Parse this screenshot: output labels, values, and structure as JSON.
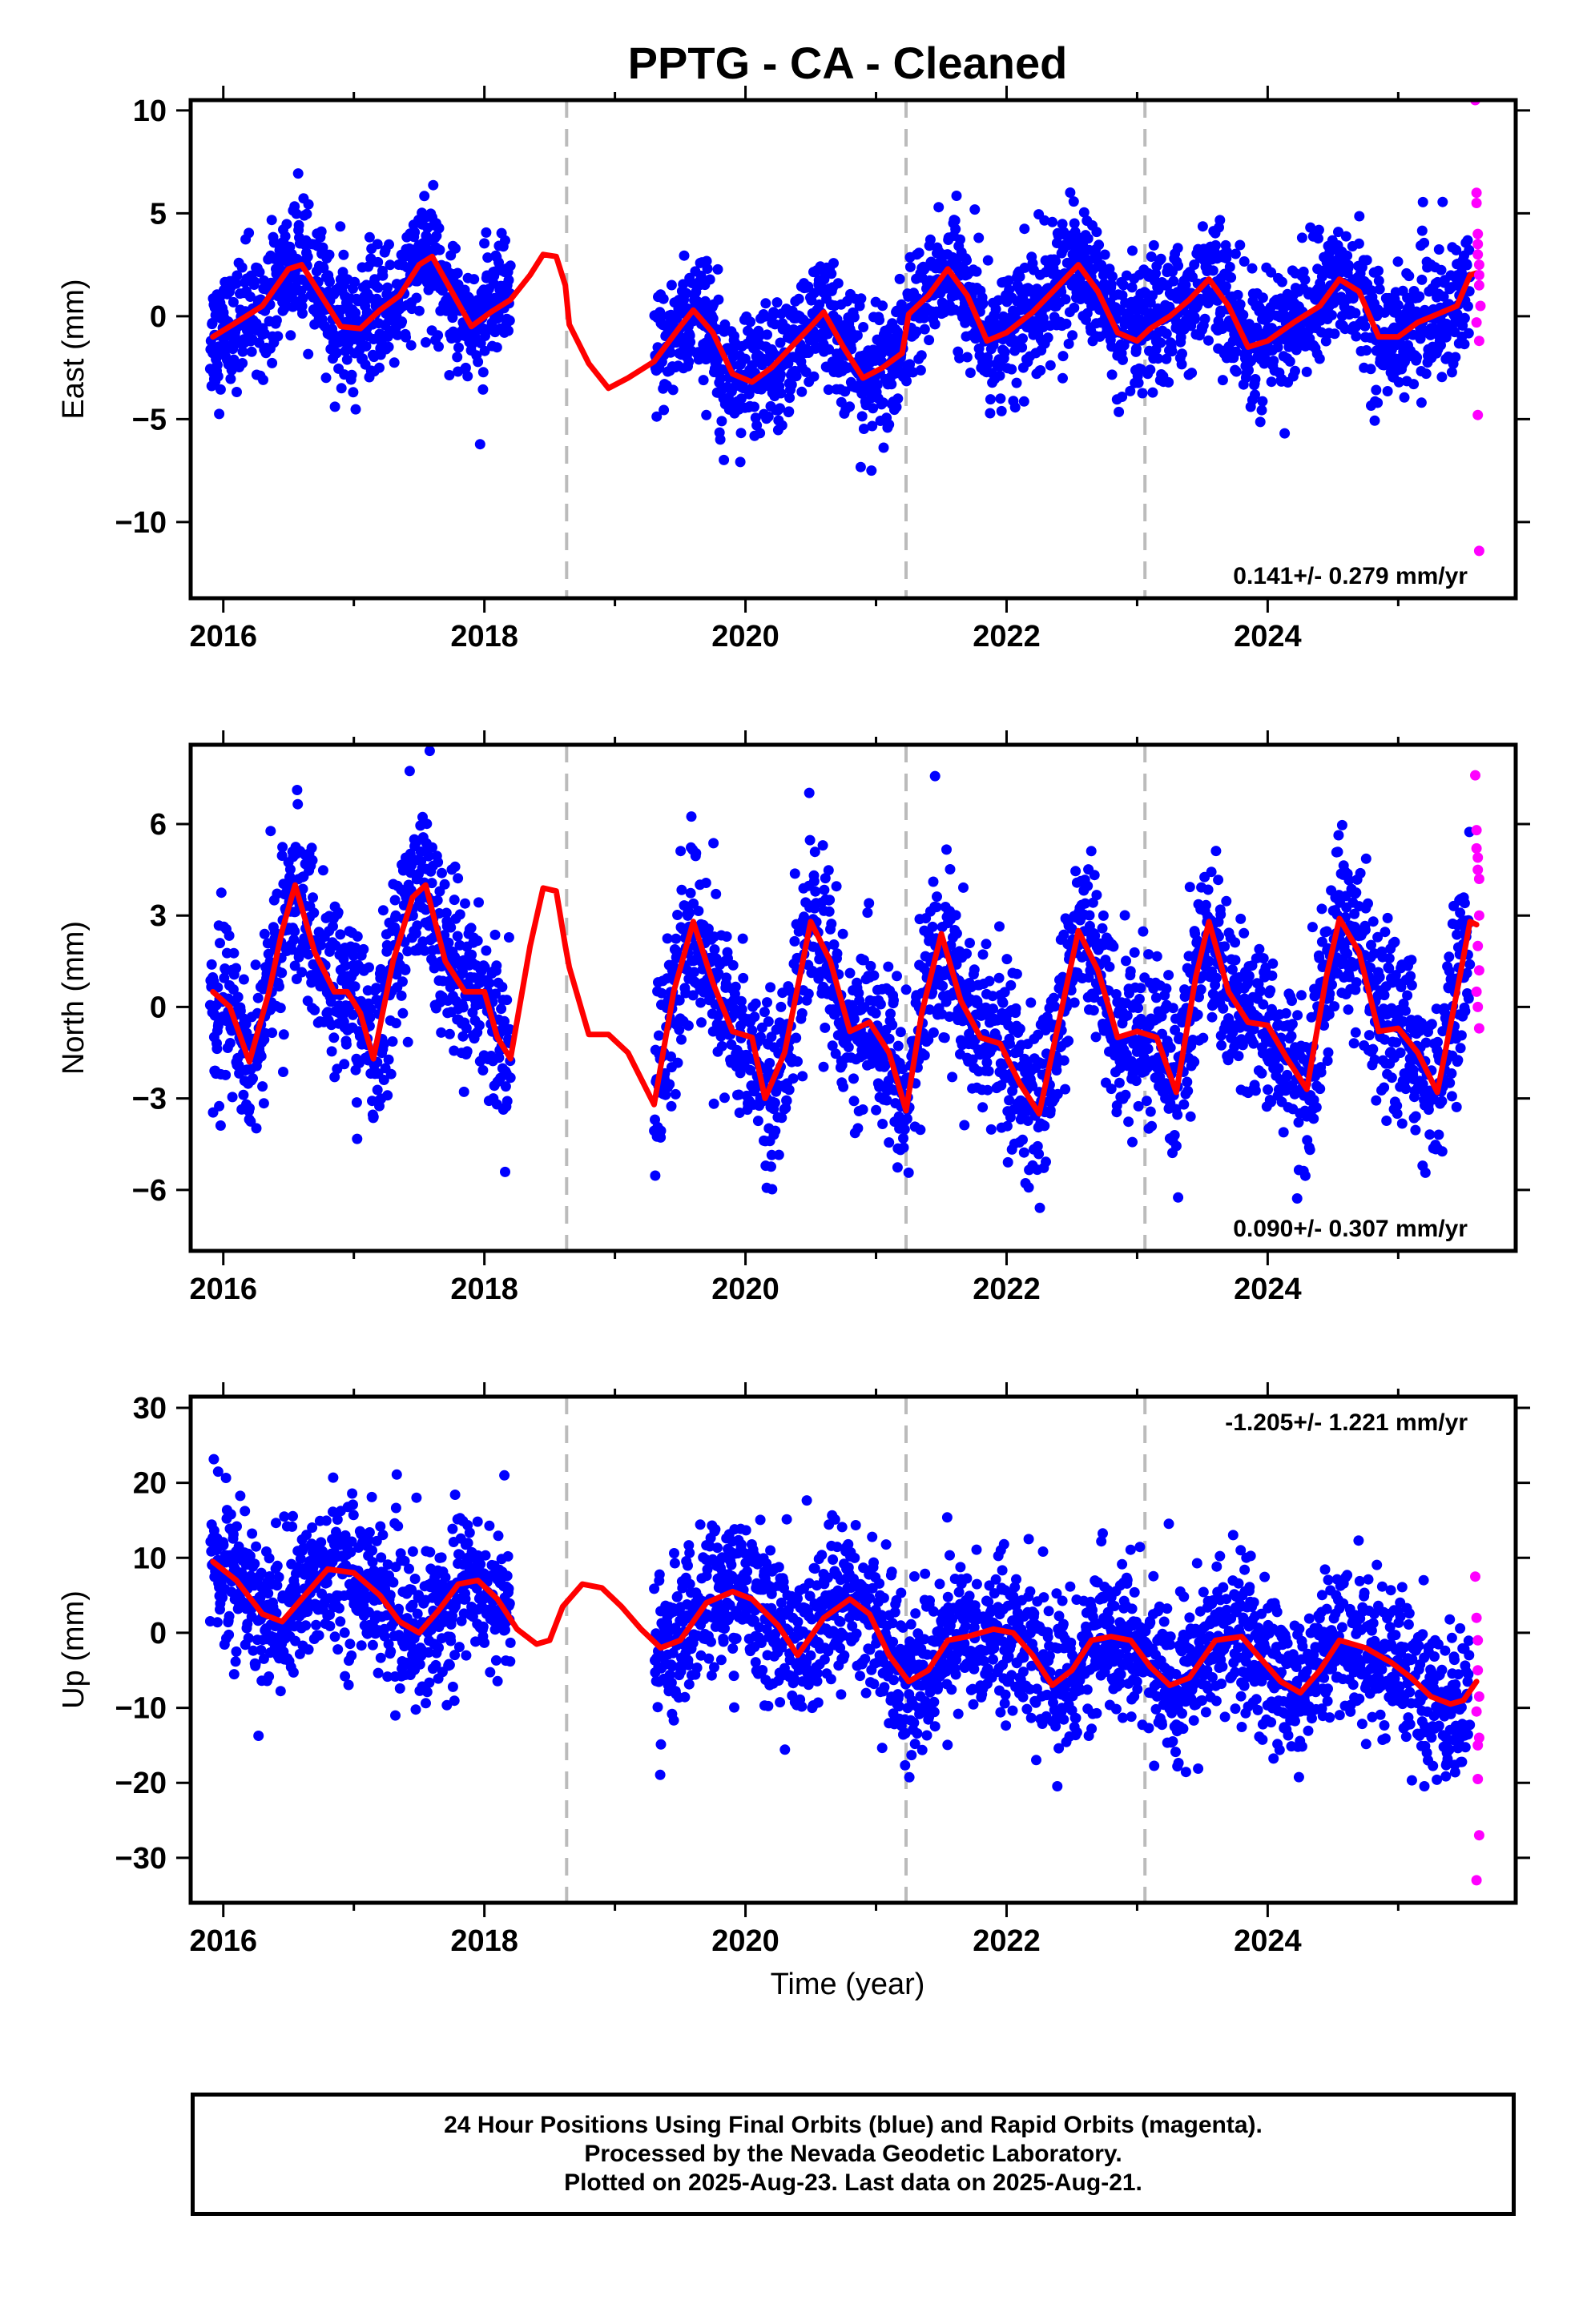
{
  "title": "PPTG  - CA - Cleaned",
  "xlabel": "Time (year)",
  "caption": {
    "line1": "24 Hour Positions Using Final Orbits (blue) and Rapid Orbits (magenta).",
    "line2": "Processed by the Nevada Geodetic Laboratory.",
    "line3": "Plotted on 2025-Aug-23. Last data on 2025-Aug-21."
  },
  "colors": {
    "final_orbits": "#0000ff",
    "rapid_orbits": "#ff00ff",
    "model_fit": "#ff0000",
    "event_lines": "#bbbbbb"
  },
  "chart_data": [
    {
      "type": "scatter",
      "component": "east",
      "ylabel": "East (mm)",
      "rate_text": "0.141+/- 0.279 mm/yr",
      "xlim": [
        2015.75,
        2025.9
      ],
      "ylim": [
        -13.7,
        10.5
      ],
      "xticks": [
        2016,
        2018,
        2020,
        2022,
        2024
      ],
      "yticks": [
        10,
        5,
        0,
        -5,
        -10
      ],
      "ytick_labels": [
        "10",
        "5",
        "0",
        "−5",
        "−10"
      ],
      "event_lines_x": [
        2018.63,
        2021.23,
        2023.06
      ],
      "data_range_x": [
        2015.9,
        2025.55
      ],
      "gap_x": [
        2018.2,
        2019.3
      ],
      "noise_sd": 1.5,
      "fit": {
        "x": [
          2015.92,
          2016.1,
          2016.3,
          2016.5,
          2016.6,
          2016.75,
          2016.9,
          2017.05,
          2017.2,
          2017.35,
          2017.5,
          2017.6,
          2017.75,
          2017.9,
          2018.05,
          2018.2,
          2018.35,
          2018.45,
          2018.55,
          2018.62,
          2018.65,
          2018.8,
          2018.95,
          2019.1,
          2019.3,
          2019.5,
          2019.6,
          2019.75,
          2019.9,
          2020.05,
          2020.2,
          2020.35,
          2020.5,
          2020.6,
          2020.75,
          2020.9,
          2021.05,
          2021.2,
          2021.25,
          2021.4,
          2021.55,
          2021.7,
          2021.85,
          2022.0,
          2022.2,
          2022.4,
          2022.55,
          2022.7,
          2022.85,
          2023.0,
          2023.1,
          2023.25,
          2023.4,
          2023.55,
          2023.7,
          2023.85,
          2024.0,
          2024.2,
          2024.4,
          2024.55,
          2024.7,
          2024.85,
          2025.0,
          2025.15,
          2025.3,
          2025.45,
          2025.55,
          2025.6
        ],
        "y": [
          -1.0,
          -0.3,
          0.5,
          2.3,
          2.5,
          1.0,
          -0.5,
          -0.6,
          0.3,
          1.0,
          2.5,
          2.9,
          1.2,
          -0.5,
          0.2,
          0.8,
          2.0,
          3.0,
          2.9,
          1.5,
          -0.4,
          -2.3,
          -3.5,
          -3.0,
          -2.2,
          -0.5,
          0.3,
          -0.8,
          -2.8,
          -3.2,
          -2.5,
          -1.5,
          -0.5,
          0.2,
          -1.5,
          -3.0,
          -2.5,
          -1.8,
          0.1,
          1.0,
          2.3,
          1.0,
          -1.2,
          -0.8,
          0.2,
          1.5,
          2.5,
          1.2,
          -0.8,
          -1.2,
          -0.6,
          0.0,
          0.8,
          1.8,
          0.5,
          -1.5,
          -1.2,
          -0.3,
          0.5,
          1.8,
          1.2,
          -1.0,
          -1.0,
          -0.3,
          0.1,
          0.5,
          2.0,
          2.1
        ]
      },
      "rapid_points": {
        "x": [
          2025.59,
          2025.6,
          2025.6,
          2025.61,
          2025.61,
          2025.61,
          2025.62,
          2025.62,
          2025.62,
          2025.63,
          2025.6,
          2025.62,
          2025.61,
          2025.62
        ],
        "y": [
          10.5,
          6.0,
          5.5,
          4.0,
          3.5,
          3.0,
          2.5,
          2.0,
          1.5,
          0.5,
          -0.3,
          -1.2,
          -4.8,
          -11.4
        ]
      }
    },
    {
      "type": "scatter",
      "component": "north",
      "ylabel": "North (mm)",
      "rate_text": "0.090+/- 0.307 mm/yr",
      "xlim": [
        2015.75,
        2025.9
      ],
      "ylim": [
        -8.0,
        8.6
      ],
      "xticks": [
        2016,
        2018,
        2020,
        2022,
        2024
      ],
      "yticks": [
        6,
        3,
        0,
        -3,
        -6
      ],
      "ytick_labels": [
        "6",
        "3",
        "0",
        "−3",
        "−6"
      ],
      "event_lines_x": [
        2018.63,
        2021.23,
        2023.06
      ],
      "data_range_x": [
        2015.9,
        2025.55
      ],
      "gap_x": [
        2018.2,
        2019.3
      ],
      "noise_sd": 1.4,
      "fit": {
        "x": [
          2015.92,
          2016.05,
          2016.2,
          2016.35,
          2016.45,
          2016.55,
          2016.7,
          2016.85,
          2016.95,
          2017.05,
          2017.15,
          2017.3,
          2017.45,
          2017.55,
          2017.7,
          2017.85,
          2018.0,
          2018.1,
          2018.2,
          2018.35,
          2018.45,
          2018.55,
          2018.62,
          2018.65,
          2018.8,
          2018.95,
          2019.1,
          2019.3,
          2019.45,
          2019.6,
          2019.75,
          2019.9,
          2020.05,
          2020.15,
          2020.3,
          2020.5,
          2020.65,
          2020.8,
          2020.95,
          2021.1,
          2021.23,
          2021.35,
          2021.5,
          2021.65,
          2021.8,
          2021.95,
          2022.1,
          2022.25,
          2022.4,
          2022.55,
          2022.7,
          2022.85,
          2023.0,
          2023.15,
          2023.3,
          2023.45,
          2023.55,
          2023.7,
          2023.85,
          2024.0,
          2024.15,
          2024.3,
          2024.45,
          2024.55,
          2024.7,
          2024.85,
          2025.0,
          2025.15,
          2025.3,
          2025.45,
          2025.55,
          2025.6
        ],
        "y": [
          0.5,
          0.0,
          -1.8,
          0.5,
          2.5,
          4.0,
          1.8,
          0.5,
          0.5,
          -0.2,
          -1.7,
          1.5,
          3.6,
          4.0,
          1.5,
          0.5,
          0.5,
          -1.0,
          -1.7,
          2.0,
          3.9,
          3.8,
          2.0,
          1.3,
          -0.9,
          -0.9,
          -1.5,
          -3.2,
          0.5,
          2.8,
          0.8,
          -0.8,
          -1.0,
          -3.0,
          -1.5,
          2.8,
          1.5,
          -0.8,
          -0.5,
          -1.5,
          -3.4,
          -0.2,
          2.4,
          0.2,
          -1.0,
          -1.2,
          -2.5,
          -3.5,
          -0.5,
          2.5,
          1.2,
          -1.0,
          -0.8,
          -1.0,
          -2.8,
          1.0,
          2.8,
          0.5,
          -0.5,
          -0.6,
          -1.7,
          -2.7,
          1.0,
          2.9,
          1.8,
          -0.8,
          -0.7,
          -1.5,
          -2.8,
          0.5,
          2.8,
          2.7
        ]
      },
      "rapid_points": {
        "x": [
          2025.59,
          2025.6,
          2025.6,
          2025.61,
          2025.61,
          2025.62,
          2025.62,
          2025.61,
          2025.62,
          2025.6,
          2025.61,
          2025.62
        ],
        "y": [
          7.6,
          5.8,
          5.2,
          4.9,
          4.5,
          4.2,
          3.0,
          2.0,
          1.2,
          0.5,
          0.0,
          -0.7
        ]
      }
    },
    {
      "type": "scatter",
      "component": "up",
      "ylabel": "Up (mm)",
      "rate_text": "-1.205+/- 1.221 mm/yr",
      "xlim": [
        2015.75,
        2025.9
      ],
      "ylim": [
        -36.0,
        31.5
      ],
      "xticks": [
        2016,
        2018,
        2020,
        2022,
        2024
      ],
      "yticks": [
        30,
        20,
        10,
        0,
        -10,
        -20,
        -30
      ],
      "ytick_labels": [
        "30",
        "20",
        "10",
        "0",
        "−10",
        "−20",
        "−30"
      ],
      "event_lines_x": [
        2018.63,
        2021.23,
        2023.06
      ],
      "data_range_x": [
        2015.9,
        2025.55
      ],
      "gap_x": [
        2018.2,
        2019.3
      ],
      "noise_sd": 5.0,
      "fit": {
        "x": [
          2015.92,
          2016.1,
          2016.3,
          2016.45,
          2016.6,
          2016.8,
          2017.0,
          2017.2,
          2017.35,
          2017.5,
          2017.65,
          2017.8,
          2017.95,
          2018.1,
          2018.25,
          2018.4,
          2018.5,
          2018.6,
          2018.75,
          2018.9,
          2019.05,
          2019.2,
          2019.35,
          2019.5,
          2019.7,
          2019.9,
          2020.05,
          2020.25,
          2020.4,
          2020.6,
          2020.8,
          2020.95,
          2021.1,
          2021.25,
          2021.4,
          2021.55,
          2021.7,
          2021.9,
          2022.05,
          2022.2,
          2022.35,
          2022.5,
          2022.65,
          2022.8,
          2022.95,
          2023.1,
          2023.25,
          2023.4,
          2023.6,
          2023.8,
          2023.95,
          2024.1,
          2024.25,
          2024.4,
          2024.55,
          2024.75,
          2024.95,
          2025.1,
          2025.25,
          2025.4,
          2025.5,
          2025.6
        ],
        "y": [
          9.5,
          7.0,
          2.5,
          1.5,
          4.5,
          8.5,
          8.0,
          5.0,
          1.5,
          0.0,
          3.0,
          6.5,
          7.0,
          4.5,
          0.5,
          -1.5,
          -1.0,
          3.5,
          6.5,
          6.0,
          3.5,
          0.5,
          -2.0,
          -1.0,
          4.0,
          5.5,
          4.5,
          1.0,
          -3.0,
          2.0,
          4.5,
          2.5,
          -3.0,
          -6.5,
          -5.0,
          -1.0,
          -0.5,
          0.5,
          0.0,
          -3.0,
          -7.0,
          -5.0,
          -1.0,
          -0.5,
          -1.0,
          -4.5,
          -7.0,
          -6.0,
          -1.0,
          -0.5,
          -3.5,
          -6.5,
          -8.0,
          -5.0,
          -1.0,
          -2.0,
          -4.0,
          -6.0,
          -8.5,
          -9.5,
          -9.0,
          -6.5
        ]
      },
      "rapid_points": {
        "x": [
          2025.59,
          2025.6,
          2025.61,
          2025.61,
          2025.62,
          2025.6,
          2025.62,
          2025.61,
          2025.62,
          2025.6,
          2025.61
        ],
        "y": [
          7.5,
          2.0,
          -1.0,
          -5.0,
          -8.5,
          -10.5,
          -14.0,
          -19.5,
          -27.0,
          -33.0,
          -15.0
        ]
      }
    }
  ]
}
